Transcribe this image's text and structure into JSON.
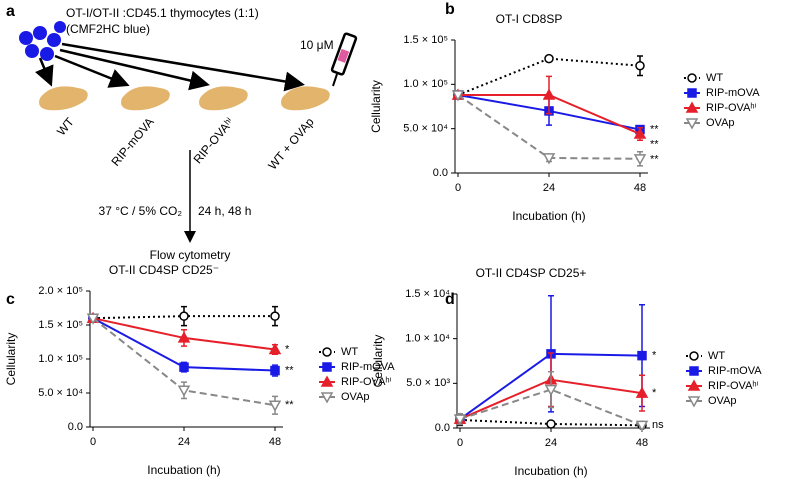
{
  "diagram": {
    "label": "a",
    "lines": [
      "OT-I/OT-II :CD45.1 thymocytes (1:1)",
      "(CMF2HC blue)"
    ],
    "dose": "10 μM",
    "conditions": [
      "WT",
      "RIP-mOVA",
      "RIP-OVAʰⁱ",
      "WT + OVAp"
    ],
    "incubation": "37 °C / 5% CO₂",
    "times": "24 h, 48 h",
    "readout": "Flow cytometry"
  },
  "chart_data": [
    {
      "type": "line",
      "panel_label": "b",
      "title": "OT-I CD8SP",
      "x_label": "Incubation (h)",
      "y_label": "Cellularity",
      "legend": "right",
      "x": [
        0,
        24,
        48
      ],
      "xlim": [
        0,
        48
      ],
      "xticks": [
        0,
        24,
        48
      ],
      "ylim": [
        0,
        150000
      ],
      "yticks": [
        {
          "value": 0,
          "label": "0.0"
        },
        {
          "value": 50000,
          "label": "5.0 × 10⁴"
        },
        {
          "value": 100000,
          "label": "1.0 × 10⁵"
        },
        {
          "value": 150000,
          "label": "1.5 × 10⁵"
        }
      ],
      "series": [
        {
          "name": "WT",
          "color": "#000000",
          "marker": "circle-open",
          "line_style": "dotted",
          "values": [
            88000,
            129000,
            121000
          ],
          "errors": [
            1500,
            2500,
            11000
          ]
        },
        {
          "name": "RIP-mOVA",
          "color": "#1a1ae6",
          "marker": "square",
          "line_style": "solid",
          "values": [
            88000,
            70000,
            49000
          ],
          "errors": [
            1500,
            16000,
            4000
          ],
          "significance": "**"
        },
        {
          "name": "RIP-OVAʰⁱ",
          "color": "#e6202a",
          "marker": "triangle-up",
          "line_style": "solid",
          "values": [
            88000,
            88000,
            44000
          ],
          "errors": [
            1500,
            21000,
            7000
          ],
          "significance": "**"
        },
        {
          "name": "OVAp",
          "color": "#888888",
          "marker": "triangle-down-open",
          "line_style": "dashed",
          "values": [
            88000,
            17000,
            16000
          ],
          "errors": [
            1500,
            4000,
            8000
          ],
          "significance": "**"
        }
      ]
    },
    {
      "type": "line",
      "panel_label": "c",
      "title": "OT-II CD4SP CD25⁻",
      "x_label": "Incubation (h)",
      "y_label": "Cellularity",
      "legend": "right",
      "x": [
        0,
        24,
        48
      ],
      "xlim": [
        0,
        48
      ],
      "xticks": [
        0,
        24,
        48
      ],
      "ylim": [
        0,
        200000
      ],
      "yticks": [
        {
          "value": 0,
          "label": "0.0"
        },
        {
          "value": 50000,
          "label": "5.0 × 10⁴"
        },
        {
          "value": 100000,
          "label": "1.0 × 10⁵"
        },
        {
          "value": 150000,
          "label": "1.5 × 10⁵"
        },
        {
          "value": 200000,
          "label": "2.0 × 10⁵"
        }
      ],
      "series": [
        {
          "name": "WT",
          "color": "#000000",
          "marker": "circle-open",
          "line_style": "dotted",
          "values": [
            160000,
            163000,
            163000
          ],
          "errors": [
            2000,
            14000,
            14000
          ]
        },
        {
          "name": "RIP-mOVA",
          "color": "#1a1ae6",
          "marker": "square",
          "line_style": "solid",
          "values": [
            160000,
            88000,
            83000
          ],
          "errors": [
            2000,
            7000,
            8000
          ],
          "significance": "**"
        },
        {
          "name": "RIP-OVAʰⁱ",
          "color": "#e6202a",
          "marker": "triangle-up",
          "line_style": "solid",
          "values": [
            160000,
            131000,
            114000
          ],
          "errors": [
            2000,
            12000,
            7000
          ],
          "significance": "*"
        },
        {
          "name": "OVAp",
          "color": "#888888",
          "marker": "triangle-down-open",
          "line_style": "dashed",
          "values": [
            160000,
            54000,
            32000
          ],
          "errors": [
            2000,
            12000,
            13000
          ],
          "significance": "**"
        }
      ]
    },
    {
      "type": "line",
      "panel_label": "d",
      "title": "OT-II CD4SP CD25+",
      "x_label": "Incubation (h)",
      "y_label": "Cellularity",
      "legend": "right",
      "x": [
        0,
        24,
        48
      ],
      "xlim": [
        0,
        48
      ],
      "xticks": [
        0,
        24,
        48
      ],
      "ylim": [
        0,
        15000
      ],
      "yticks": [
        {
          "value": 0,
          "label": "0.0"
        },
        {
          "value": 5000,
          "label": "5.0 × 10³"
        },
        {
          "value": 10000,
          "label": "1.0 × 10⁴"
        },
        {
          "value": 15000,
          "label": "1.5 × 10⁴"
        }
      ],
      "series": [
        {
          "name": "WT",
          "color": "#000000",
          "marker": "circle-open",
          "line_style": "dotted",
          "values": [
            900,
            450,
            300
          ],
          "errors": [
            600,
            300,
            300
          ]
        },
        {
          "name": "RIP-mOVA",
          "color": "#1a1ae6",
          "marker": "square",
          "line_style": "solid",
          "values": [
            1000,
            8300,
            8100
          ],
          "errors": [
            600,
            6500,
            5700
          ],
          "significance": "*"
        },
        {
          "name": "RIP-OVAʰⁱ",
          "color": "#e6202a",
          "marker": "triangle-up",
          "line_style": "solid",
          "values": [
            1000,
            5400,
            3900
          ],
          "errors": [
            600,
            3000,
            2000
          ],
          "significance": "*"
        },
        {
          "name": "OVAp",
          "color": "#888888",
          "marker": "triangle-down-open",
          "line_style": "dashed",
          "values": [
            1000,
            4300,
            300
          ],
          "errors": [
            600,
            2000,
            300
          ],
          "significance": "ns"
        }
      ]
    }
  ]
}
